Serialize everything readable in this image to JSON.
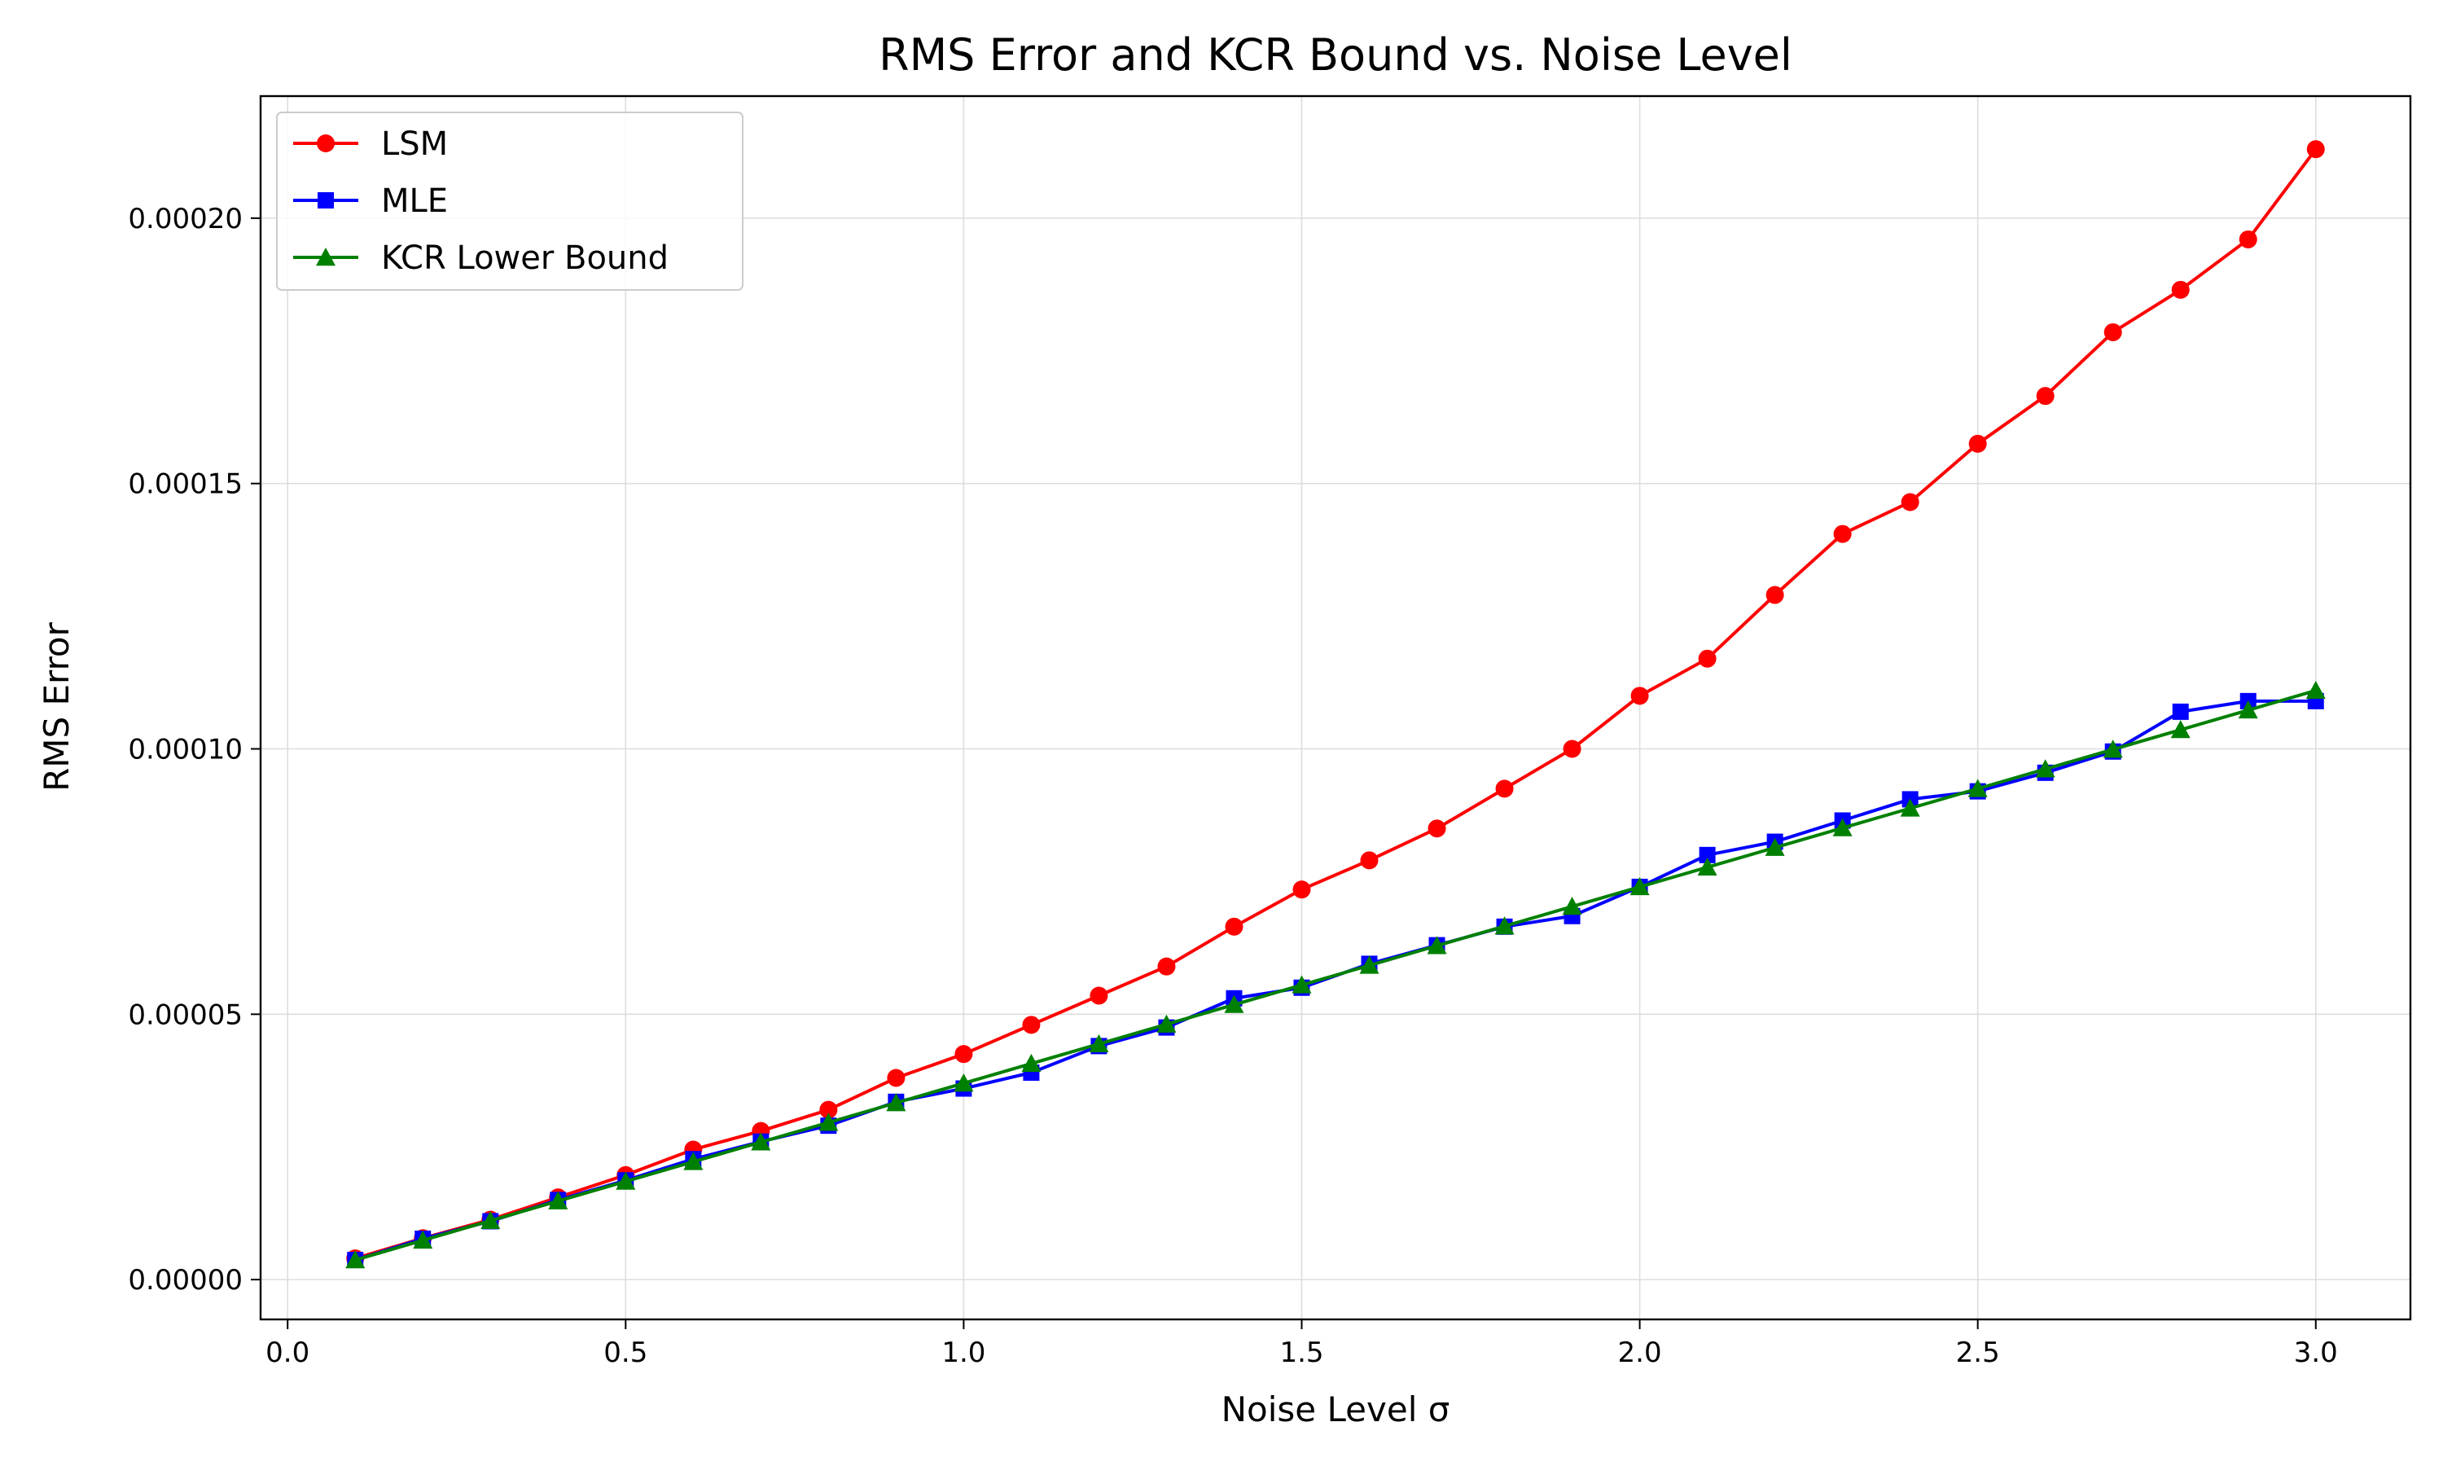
{
  "chart_data": {
    "type": "line",
    "title": "RMS Error and KCR Bound vs. Noise Level",
    "xlabel": "Noise Level σ",
    "ylabel": "RMS Error",
    "xlim": [
      -0.04,
      3.14
    ],
    "ylim": [
      -7.5e-06,
      0.000223
    ],
    "xticks": [
      0.0,
      0.5,
      1.0,
      1.5,
      2.0,
      2.5,
      3.0
    ],
    "xtick_labels": [
      "0.0",
      "0.5",
      "1.0",
      "1.5",
      "2.0",
      "2.5",
      "3.0"
    ],
    "yticks": [
      0.0,
      5e-05,
      0.0001,
      0.00015,
      0.0002
    ],
    "ytick_labels": [
      "0.00000",
      "0.00005",
      "0.00010",
      "0.00015",
      "0.00020"
    ],
    "grid": true,
    "legend_position": "top-left",
    "x": [
      0.1,
      0.2,
      0.3,
      0.4,
      0.5,
      0.6,
      0.7,
      0.8,
      0.9,
      1.0,
      1.1,
      1.2,
      1.3,
      1.4,
      1.5,
      1.6,
      1.7,
      1.8,
      1.9,
      2.0,
      2.1,
      2.2,
      2.3,
      2.4,
      2.5,
      2.6,
      2.7,
      2.8,
      2.9,
      3.0
    ],
    "series": [
      {
        "name": "LSM",
        "color": "#ff0000",
        "marker": "circle",
        "values": [
          4e-06,
          7.8e-06,
          1.13e-05,
          1.55e-05,
          1.97e-05,
          2.45e-05,
          2.8e-05,
          3.2e-05,
          3.8e-05,
          4.25e-05,
          4.8e-05,
          5.35e-05,
          5.9e-05,
          6.65e-05,
          7.35e-05,
          7.9e-05,
          8.5e-05,
          9.25e-05,
          0.0001,
          0.00011,
          0.000117,
          0.000129,
          0.0001405,
          0.0001465,
          0.0001575,
          0.0001665,
          0.0001785,
          0.0001865,
          0.000196,
          0.000213
        ]
      },
      {
        "name": "MLE",
        "color": "#0000ff",
        "marker": "square",
        "values": [
          3.7e-06,
          7.7e-06,
          1.1e-05,
          1.5e-05,
          1.87e-05,
          2.27e-05,
          2.6e-05,
          2.9e-05,
          3.35e-05,
          3.6e-05,
          3.9e-05,
          4.4e-05,
          4.75e-05,
          5.3e-05,
          5.5e-05,
          5.95e-05,
          6.3e-05,
          6.65e-05,
          6.85e-05,
          7.4e-05,
          8e-05,
          8.25e-05,
          8.65e-05,
          9.05e-05,
          9.2e-05,
          9.55e-05,
          9.95e-05,
          0.000107,
          0.000109,
          0.000109
        ]
      },
      {
        "name": "KCR Lower Bound",
        "color": "#008000",
        "marker": "triangle",
        "values": [
          3.7e-06,
          7.4e-06,
          1.11e-05,
          1.48e-05,
          1.85e-05,
          2.22e-05,
          2.59e-05,
          2.96e-05,
          3.33e-05,
          3.7e-05,
          4.07e-05,
          4.44e-05,
          4.81e-05,
          5.18e-05,
          5.55e-05,
          5.92e-05,
          6.29e-05,
          6.66e-05,
          7.03e-05,
          7.4e-05,
          7.77e-05,
          8.14e-05,
          8.51e-05,
          8.88e-05,
          9.25e-05,
          9.62e-05,
          9.99e-05,
          0.0001036,
          0.0001073,
          0.000111
        ]
      }
    ]
  }
}
